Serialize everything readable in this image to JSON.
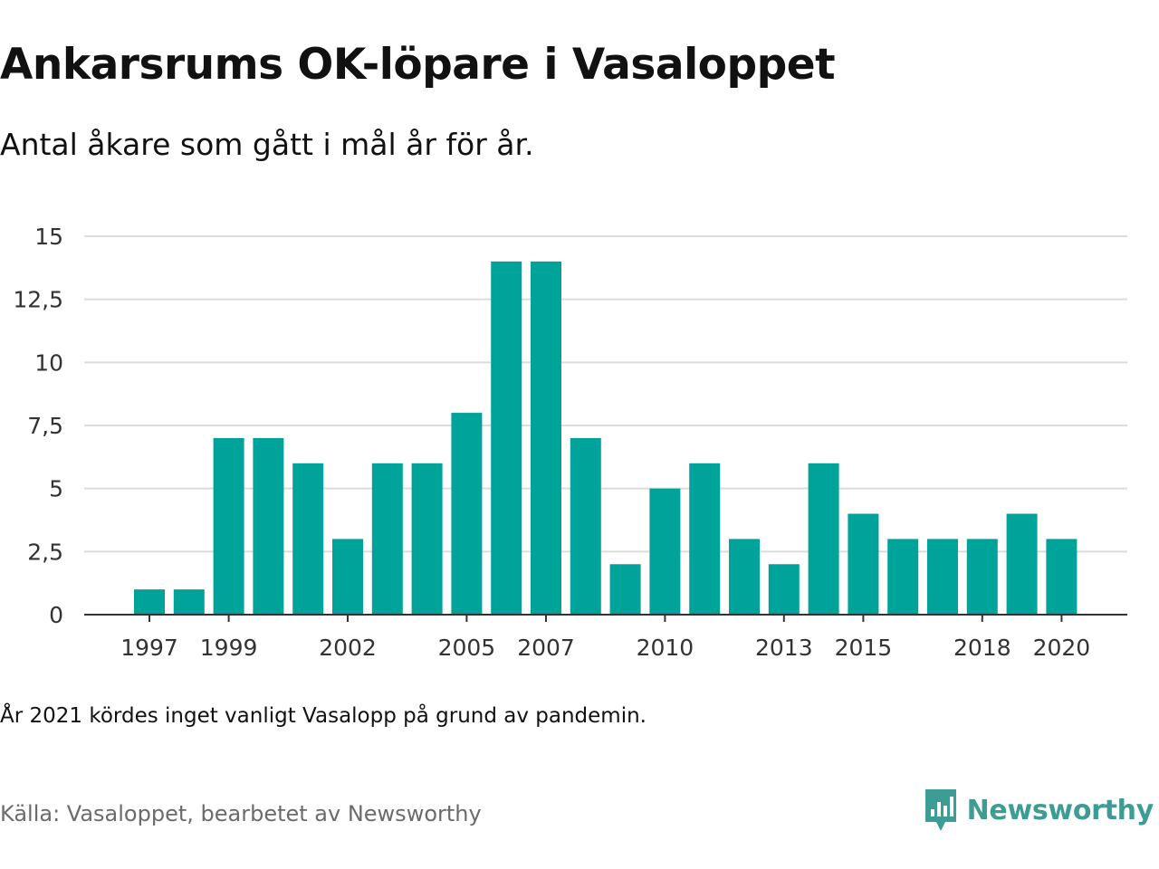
{
  "title": "Ankarsrums OK-löpare i Vasaloppet",
  "subtitle": "Antal åkare som gått i mål år för år.",
  "note": "År 2021 kördes inget vanligt Vasalopp på grund av pandemin.",
  "source": "Källa: Vasaloppet, bearbetet av Newsworthy",
  "brand": {
    "name": "Newsworthy",
    "icon": "newsworthy-logo-icon",
    "color": "#3d9c94"
  },
  "chart_data": {
    "type": "bar",
    "title": "",
    "xlabel": "",
    "ylabel": "",
    "ylim": [
      0,
      15
    ],
    "yticks": [
      "0",
      "2,5",
      "5",
      "7,5",
      "10",
      "12,5",
      "15"
    ],
    "grid": true,
    "legend": "none",
    "bar_color": "#00a39a",
    "categories": [
      "1997",
      "1998",
      "1999",
      "2000",
      "2001",
      "2002",
      "2003",
      "2004",
      "2005",
      "2006",
      "2007",
      "2008",
      "2009",
      "2010",
      "2011",
      "2012",
      "2013",
      "2014",
      "2015",
      "2016",
      "2017",
      "2018",
      "2019",
      "2020"
    ],
    "x_tick_labels": [
      "1997",
      "1999",
      "2002",
      "2005",
      "2007",
      "2010",
      "2013",
      "2015",
      "2018",
      "2020"
    ],
    "values": [
      1,
      1,
      7,
      7,
      6,
      3,
      6,
      6,
      8,
      14,
      14,
      7,
      2,
      5,
      6,
      3,
      2,
      6,
      4,
      3,
      3,
      3,
      4,
      3
    ]
  }
}
